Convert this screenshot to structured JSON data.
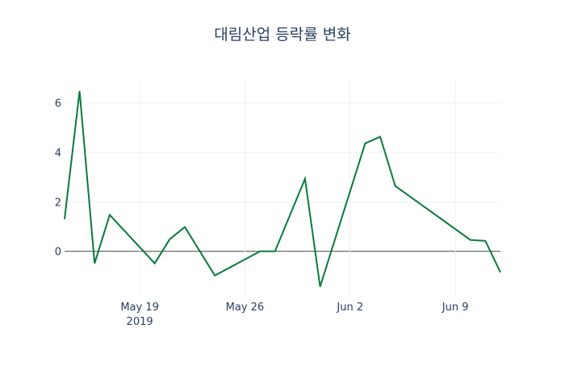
{
  "chart_data": {
    "type": "line",
    "title": "대림산업 등락률 변화",
    "xlabel": "",
    "ylabel": "",
    "x": [
      "2019-05-14",
      "2019-05-15",
      "2019-05-16",
      "2019-05-17",
      "2019-05-20",
      "2019-05-21",
      "2019-05-22",
      "2019-05-24",
      "2019-05-27",
      "2019-05-28",
      "2019-05-30",
      "2019-05-31",
      "2019-06-03",
      "2019-06-04",
      "2019-06-05",
      "2019-06-10",
      "2019-06-11",
      "2019-06-12"
    ],
    "series": [
      {
        "name": "등락률",
        "color": "#0a7a3c",
        "values": [
          1.3,
          6.48,
          -0.49,
          1.47,
          -0.49,
          0.49,
          0.98,
          -0.98,
          0,
          0,
          2.93,
          -1.43,
          4.36,
          4.63,
          2.64,
          0.46,
          0.42,
          -0.85
        ]
      }
    ],
    "xrange": [
      "2019-05-14",
      "2019-06-12"
    ],
    "ylim": [
      -1.9,
      6.9
    ],
    "yticks": [
      0,
      2,
      4,
      6
    ],
    "xticks": [
      {
        "date": "2019-05-19",
        "label": "May 19",
        "sublabel": "2019"
      },
      {
        "date": "2019-05-26",
        "label": "May 26"
      },
      {
        "date": "2019-06-02",
        "label": "Jun 2"
      },
      {
        "date": "2019-06-09",
        "label": "Jun 9"
      }
    ],
    "grid": true,
    "legend": "none"
  }
}
